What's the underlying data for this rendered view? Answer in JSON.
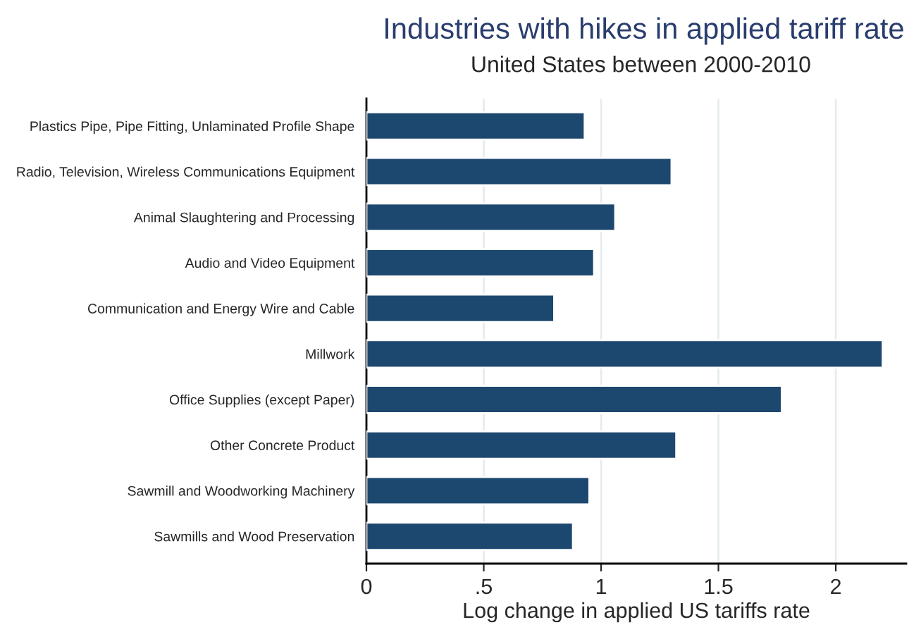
{
  "chart_data": {
    "type": "bar",
    "orientation": "horizontal",
    "title": "Industries with hikes in applied tariff rate",
    "subtitle": "United States between 2000-2010",
    "xlabel": "Log change in applied US tariffs rate",
    "categories": [
      "Plastics Pipe, Pipe Fitting, Unlaminated Profile Shape",
      "Radio, Television, Wireless Communications Equipment",
      "Animal Slaughtering and Processing",
      "Audio and Video Equipment",
      "Communication and Energy Wire and Cable",
      "Millwork",
      "Office Supplies (except Paper)",
      "Other Concrete Product",
      "Sawmill and Woodworking Machinery",
      "Sawmills and Wood Preservation"
    ],
    "values": [
      0.93,
      1.3,
      1.06,
      0.97,
      0.8,
      2.2,
      1.77,
      1.32,
      0.95,
      0.88
    ],
    "color": "#1c476f",
    "xlim": [
      0,
      2.3
    ],
    "xticks": [
      0,
      {
        "value": 0.5,
        "label": ".5"
      },
      1,
      1.5,
      2
    ],
    "grid": "x",
    "legend": false
  }
}
